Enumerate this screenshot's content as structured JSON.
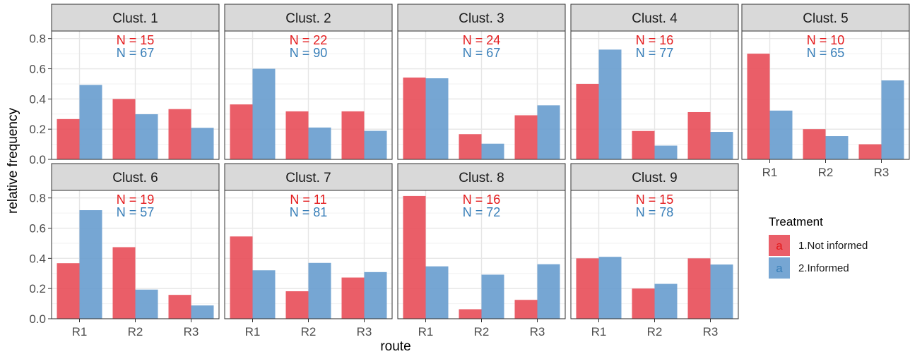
{
  "chart_data": {
    "type": "bar",
    "xlabel": "route",
    "ylabel": "relative frequency",
    "ylim": [
      0,
      0.85
    ],
    "yticks": [
      0.0,
      0.2,
      0.4,
      0.6,
      0.8
    ],
    "ytick_labels": [
      "0.0",
      "0.2",
      "0.4",
      "0.6",
      "0.8"
    ],
    "categories": [
      "R1",
      "R2",
      "R3"
    ],
    "grid": true,
    "legend": {
      "title": "Treatment",
      "placement": "right",
      "key_glyph": "a",
      "items": [
        {
          "name": "1.Not informed",
          "color": "#e8505b"
        },
        {
          "name": "2.Informed",
          "color": "#6a9ecf"
        }
      ]
    },
    "n_colors": [
      "#e41a1c",
      "#377eb8"
    ],
    "panels": [
      {
        "title": "Clust. 1",
        "n": [
          "N = 15",
          "N = 67"
        ],
        "series": [
          {
            "name": "1.Not informed",
            "values": [
              0.267,
              0.4,
              0.333
            ]
          },
          {
            "name": "2.Informed",
            "values": [
              0.493,
              0.299,
              0.209
            ]
          }
        ]
      },
      {
        "title": "Clust. 2",
        "n": [
          "N = 22",
          "N = 90"
        ],
        "series": [
          {
            "name": "1.Not informed",
            "values": [
              0.364,
              0.318,
              0.318
            ]
          },
          {
            "name": "2.Informed",
            "values": [
              0.6,
              0.211,
              0.189
            ]
          }
        ]
      },
      {
        "title": "Clust. 3",
        "n": [
          "N = 24",
          "N = 67"
        ],
        "series": [
          {
            "name": "1.Not informed",
            "values": [
              0.542,
              0.167,
              0.292
            ]
          },
          {
            "name": "2.Informed",
            "values": [
              0.537,
              0.104,
              0.358
            ]
          }
        ]
      },
      {
        "title": "Clust. 4",
        "n": [
          "N = 16",
          "N = 77"
        ],
        "series": [
          {
            "name": "1.Not informed",
            "values": [
              0.5,
              0.188,
              0.313
            ]
          },
          {
            "name": "2.Informed",
            "values": [
              0.727,
              0.091,
              0.182
            ]
          }
        ]
      },
      {
        "title": "Clust. 5",
        "n": [
          "N = 10",
          "N = 65"
        ],
        "series": [
          {
            "name": "1.Not informed",
            "values": [
              0.7,
              0.2,
              0.1
            ]
          },
          {
            "name": "2.Informed",
            "values": [
              0.323,
              0.154,
              0.523
            ]
          }
        ]
      },
      {
        "title": "Clust. 6",
        "n": [
          "N = 19",
          "N = 57"
        ],
        "series": [
          {
            "name": "1.Not informed",
            "values": [
              0.368,
              0.474,
              0.158
            ]
          },
          {
            "name": "2.Informed",
            "values": [
              0.719,
              0.193,
              0.088
            ]
          }
        ]
      },
      {
        "title": "Clust. 7",
        "n": [
          "N = 11",
          "N = 81"
        ],
        "series": [
          {
            "name": "1.Not informed",
            "values": [
              0.545,
              0.182,
              0.273
            ]
          },
          {
            "name": "2.Informed",
            "values": [
              0.321,
              0.37,
              0.309
            ]
          }
        ]
      },
      {
        "title": "Clust. 8",
        "n": [
          "N = 16",
          "N = 72"
        ],
        "series": [
          {
            "name": "1.Not informed",
            "values": [
              0.813,
              0.063,
              0.125
            ]
          },
          {
            "name": "2.Informed",
            "values": [
              0.347,
              0.292,
              0.361
            ]
          }
        ]
      },
      {
        "title": "Clust. 9",
        "n": [
          "N = 15",
          "N = 78"
        ],
        "series": [
          {
            "name": "1.Not informed",
            "values": [
              0.4,
              0.2,
              0.4
            ]
          },
          {
            "name": "2.Informed",
            "values": [
              0.41,
              0.231,
              0.359
            ]
          }
        ]
      }
    ]
  }
}
